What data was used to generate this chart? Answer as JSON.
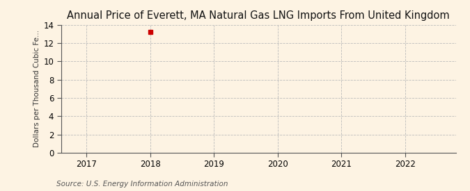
{
  "title": "Annual Price of Everett, MA Natural Gas LNG Imports From United Kingdom",
  "ylabel": "Dollars per Thousand Cubic Fe...",
  "source": "Source: U.S. Energy Information Administration",
  "background_color": "#fdf3e3",
  "plot_bg_color": "#fdf3e3",
  "data_x": [
    2018
  ],
  "data_y": [
    13.19
  ],
  "marker_color": "#cc0000",
  "marker_style": "s",
  "marker_size": 4,
  "xlim": [
    2016.6,
    2022.8
  ],
  "ylim": [
    0,
    14
  ],
  "xticks": [
    2017,
    2018,
    2019,
    2020,
    2021,
    2022
  ],
  "yticks": [
    0,
    2,
    4,
    6,
    8,
    10,
    12,
    14
  ],
  "grid_color": "#bbbbbb",
  "grid_linestyle": "--",
  "grid_linewidth": 0.6,
  "title_fontsize": 10.5,
  "title_fontweight": "normal",
  "axis_label_fontsize": 7.5,
  "tick_fontsize": 8.5,
  "source_fontsize": 7.5,
  "spine_color": "#555555",
  "tick_color": "#555555"
}
